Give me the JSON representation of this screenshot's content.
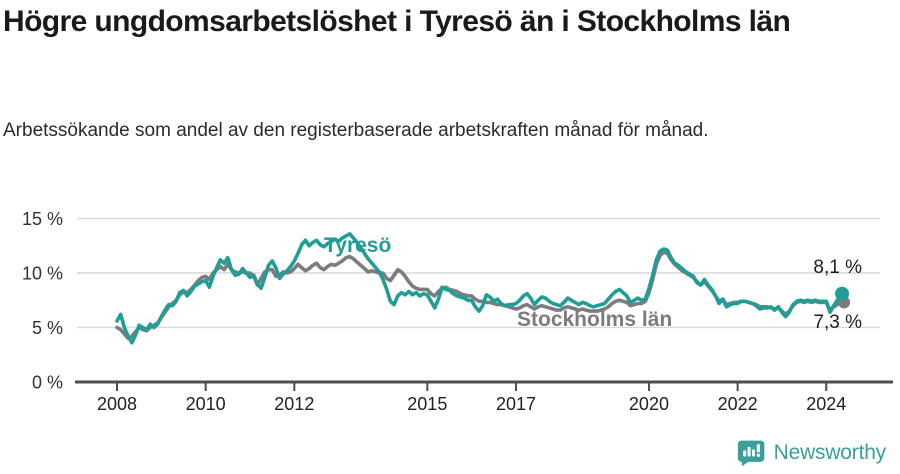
{
  "header": {
    "title": "Högre ungdomsarbetslöshet i Tyresö än i Stockholms län",
    "subtitle": "Arbetssökande som andel av den registerbaserade arbetskraften månad för månad."
  },
  "footer": {
    "brand": "Newsworthy",
    "logo_icon": "newsworthy-chart-bubble-icon"
  },
  "colors": {
    "tyreso_line": "#1f9e95",
    "stockholm_line": "#7b7c7e",
    "stockholm_label": "#7c7c7c",
    "grid": "#d9d9d9",
    "axis": "#4d4d4d",
    "tick_label": "#222222",
    "value_label": "#1d1d1d",
    "brand": "#3aa09a"
  },
  "chart_data": {
    "type": "line",
    "title": "Högre ungdomsarbetslöshet i Tyresö än i Stockholms län",
    "subtitle": "Arbetssökande som andel av den registerbaserade arbetskraften månad för månad.",
    "x_unit": "month",
    "x_start_year": 2008,
    "x_end": "2024-05",
    "xlim_years": [
      2008,
      2024.42
    ],
    "ylim": [
      0,
      15
    ],
    "grid": "horizontal",
    "legend": "inline-labels",
    "x_tick_years": [
      2008,
      2010,
      2012,
      2015,
      2017,
      2020,
      2022,
      2024
    ],
    "x_tick_labels": [
      "2008",
      "2010",
      "2012",
      "2015",
      "2017",
      "2020",
      "2022",
      "2024"
    ],
    "y_ticks": [
      {
        "value": 0,
        "label": "0 %"
      },
      {
        "value": 5,
        "label": "5 %"
      },
      {
        "value": 10,
        "label": "10 %"
      },
      {
        "value": 15,
        "label": "15 %"
      }
    ],
    "series": [
      {
        "name": "Stockholms län",
        "color": "#7b7c7e",
        "end_label": "7,3 %",
        "end_value": 7.3,
        "values": [
          5.0,
          4.8,
          4.4,
          4.0,
          4.2,
          4.6,
          5.0,
          4.8,
          4.7,
          5.0,
          5.2,
          5.4,
          5.9,
          6.4,
          6.9,
          7.2,
          7.5,
          8.0,
          8.3,
          8.2,
          8.5,
          8.9,
          9.3,
          9.6,
          9.7,
          9.4,
          10.0,
          10.3,
          10.6,
          10.3,
          10.8,
          10.3,
          10.1,
          10.0,
          10.1,
          10.0,
          10.0,
          9.7,
          8.9,
          9.5,
          10.1,
          10.3,
          10.3,
          9.7,
          9.8,
          10.1,
          10.0,
          10.1,
          10.4,
          10.8,
          10.5,
          10.2,
          10.4,
          10.7,
          10.9,
          10.5,
          10.3,
          10.6,
          10.8,
          10.7,
          10.9,
          11.1,
          11.4,
          11.5,
          11.3,
          11.0,
          10.7,
          10.4,
          10.1,
          10.2,
          10.1,
          10.0,
          10.0,
          9.5,
          9.3,
          9.8,
          10.3,
          10.1,
          9.7,
          9.2,
          8.8,
          8.6,
          8.5,
          8.5,
          8.5,
          8.1,
          7.9,
          8.3,
          8.6,
          8.7,
          8.5,
          8.4,
          8.3,
          8.1,
          8.0,
          7.9,
          7.9,
          7.6,
          7.4,
          7.4,
          7.3,
          7.3,
          7.2,
          7.1,
          7.1,
          7.0,
          6.9,
          6.8,
          6.7,
          6.8,
          7.0,
          7.1,
          6.9,
          6.7,
          6.9,
          7.0,
          6.9,
          6.8,
          6.7,
          6.6,
          6.6,
          6.8,
          6.9,
          6.8,
          6.7,
          6.6,
          6.7,
          6.6,
          6.5,
          6.5,
          6.5,
          6.6,
          6.7,
          6.9,
          7.2,
          7.4,
          7.5,
          7.4,
          7.3,
          7.0,
          7.1,
          7.2,
          7.2,
          7.4,
          8.2,
          9.4,
          10.8,
          11.6,
          11.9,
          11.8,
          11.2,
          10.8,
          10.5,
          10.2,
          10.0,
          9.8,
          9.6,
          9.2,
          8.9,
          9.2,
          8.8,
          8.4,
          7.9,
          7.4,
          7.6,
          7.1,
          7.2,
          7.3,
          7.3,
          7.4,
          7.4,
          7.3,
          7.2,
          7.1,
          6.9,
          6.9,
          6.9,
          6.8,
          6.7,
          6.8,
          6.5,
          6.2,
          6.5,
          7.0,
          7.3,
          7.4,
          7.3,
          7.4,
          7.3,
          7.4,
          7.3,
          7.3,
          7.3,
          6.6,
          6.9,
          7.1,
          7.3
        ]
      },
      {
        "name": "Tyresö",
        "color": "#1f9e95",
        "end_label": "8,1 %",
        "end_value": 8.1,
        "values": [
          5.6,
          6.2,
          5.0,
          4.2,
          3.6,
          4.3,
          5.2,
          5.0,
          4.8,
          5.3,
          5.0,
          5.3,
          6.0,
          6.6,
          7.1,
          7.0,
          7.4,
          8.2,
          8.4,
          7.9,
          8.3,
          8.8,
          9.0,
          9.2,
          9.3,
          8.7,
          9.7,
          10.5,
          11.2,
          10.9,
          11.4,
          10.3,
          9.8,
          9.9,
          10.4,
          10.0,
          9.6,
          9.8,
          9.0,
          8.6,
          9.6,
          10.7,
          11.1,
          10.5,
          9.5,
          9.9,
          10.2,
          10.6,
          11.1,
          11.8,
          12.6,
          13.0,
          12.5,
          12.8,
          13.0,
          12.6,
          12.4,
          12.7,
          12.9,
          13.1,
          12.9,
          13.2,
          13.4,
          13.6,
          13.2,
          12.8,
          12.3,
          11.8,
          11.3,
          10.9,
          10.5,
          10.1,
          9.4,
          8.5,
          7.4,
          7.1,
          7.9,
          8.2,
          8.0,
          8.3,
          8.0,
          8.2,
          7.9,
          8.1,
          8.0,
          7.4,
          6.8,
          7.6,
          8.7,
          8.5,
          8.4,
          8.1,
          7.9,
          7.8,
          7.7,
          7.5,
          7.5,
          6.9,
          6.5,
          7.0,
          8.0,
          7.8,
          7.4,
          7.6,
          7.2,
          7.0,
          7.1,
          7.1,
          7.2,
          7.5,
          7.9,
          8.1,
          7.7,
          7.1,
          7.5,
          7.8,
          7.7,
          7.4,
          7.2,
          7.1,
          7.0,
          7.3,
          7.7,
          7.5,
          7.3,
          7.1,
          7.3,
          7.2,
          7.0,
          6.9,
          7.0,
          7.1,
          7.2,
          7.6,
          8.0,
          8.3,
          8.5,
          8.2,
          7.9,
          7.3,
          7.5,
          7.7,
          7.5,
          7.6,
          8.6,
          9.8,
          11.2,
          12.0,
          12.2,
          12.1,
          11.4,
          10.9,
          10.7,
          10.4,
          10.1,
          9.9,
          9.7,
          9.1,
          8.9,
          9.4,
          8.9,
          8.5,
          7.9,
          7.2,
          7.6,
          6.9,
          7.1,
          7.2,
          7.2,
          7.4,
          7.4,
          7.3,
          7.2,
          7.0,
          6.7,
          6.8,
          6.8,
          6.9,
          6.6,
          6.9,
          6.4,
          6.0,
          6.4,
          7.1,
          7.4,
          7.5,
          7.4,
          7.5,
          7.4,
          7.5,
          7.4,
          7.4,
          7.4,
          6.4,
          7.0,
          7.5,
          8.1
        ]
      }
    ]
  }
}
